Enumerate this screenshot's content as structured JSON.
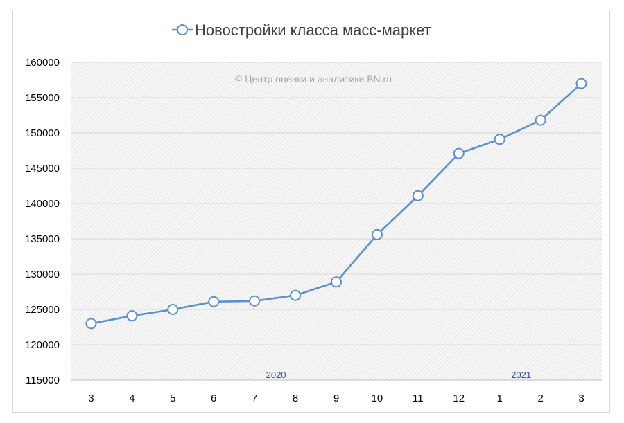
{
  "chart_data": {
    "type": "line",
    "title": "Новостройки класса масс-маркет",
    "watermark": "© Центр оценки и аналитики BN.ru",
    "categories": [
      "3",
      "4",
      "5",
      "6",
      "7",
      "8",
      "9",
      "10",
      "11",
      "12",
      "1",
      "2",
      "3"
    ],
    "year_labels": [
      {
        "label": "2020",
        "category_index": 5
      },
      {
        "label": "2021",
        "category_index": 11
      }
    ],
    "series": [
      {
        "name": "Новостройки класса масс-маркет",
        "color": "#5b8fd1",
        "values": [
          123000,
          124100,
          125000,
          126100,
          126200,
          127000,
          128900,
          135600,
          141100,
          147100,
          149100,
          151800,
          157000
        ]
      }
    ],
    "ylim": [
      115000,
      160000
    ],
    "yticks": [
      "115000",
      "120000",
      "125000",
      "130000",
      "135000",
      "140000",
      "145000",
      "150000",
      "155000",
      "160000"
    ],
    "grid": true,
    "legend_position": "top",
    "colors": {
      "line": "#5b8fd1",
      "year_label": "#2f5597",
      "grid": "#d9d9d9"
    }
  }
}
